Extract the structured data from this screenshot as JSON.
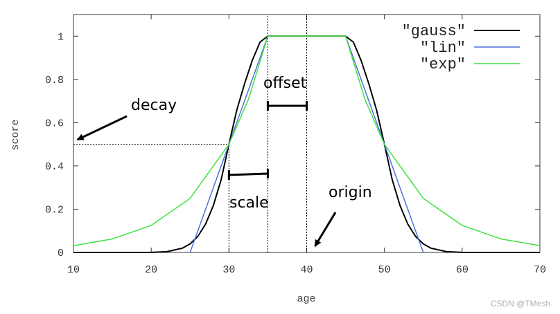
{
  "chart_data": {
    "type": "line",
    "title": "",
    "xlabel": "age",
    "ylabel": "score",
    "xlim": [
      10,
      70
    ],
    "ylim": [
      0,
      1.1
    ],
    "xticks": [
      "10",
      "20",
      "30",
      "40",
      "50",
      "60",
      "70"
    ],
    "yticks": [
      "0",
      "0.2",
      "0.4",
      "0.6",
      "0.8",
      "1"
    ],
    "grid": false,
    "legend_position": "top-right",
    "function_params": {
      "origin": 40,
      "offset": 5,
      "scale": 5,
      "decay": 0.5
    },
    "series": [
      {
        "name": "\"gauss\"",
        "color": "#000000",
        "x": [
          10,
          15,
          20,
          22,
          24,
          25,
          26,
          27,
          28,
          29,
          30,
          31,
          32,
          33,
          34,
          35,
          45,
          46,
          47,
          48,
          49,
          50,
          51,
          52,
          53,
          54,
          55,
          56,
          58,
          60,
          65,
          70
        ],
        "y": [
          0,
          0,
          0.0005,
          0.0037,
          0.0195,
          0.0394,
          0.0744,
          0.1316,
          0.2176,
          0.3368,
          0.5,
          0.6571,
          0.7791,
          0.8877,
          0.9726,
          1,
          1,
          0.9726,
          0.8877,
          0.7791,
          0.6571,
          0.5,
          0.3368,
          0.2176,
          0.1316,
          0.0744,
          0.0394,
          0.0195,
          0.0037,
          0.0005,
          0,
          0
        ]
      },
      {
        "name": "\"lin\"",
        "color": "#4f6fdb",
        "x": [
          25,
          35,
          45,
          55
        ],
        "y": [
          0,
          1,
          1,
          0
        ]
      },
      {
        "name": "\"exp\"",
        "color": "#3de33d",
        "x": [
          10,
          15,
          20,
          25,
          30,
          32.5,
          35,
          45,
          47.5,
          50,
          55,
          60,
          65,
          70
        ],
        "y": [
          0.0313,
          0.0625,
          0.125,
          0.25,
          0.5,
          0.7071,
          1,
          1,
          0.7071,
          0.5,
          0.25,
          0.125,
          0.0625,
          0.0313
        ]
      }
    ],
    "annotations": {
      "decay": "decay",
      "offset": "offset",
      "scale": "scale",
      "origin": "origin"
    }
  },
  "watermark": "CSDN @TMesh"
}
